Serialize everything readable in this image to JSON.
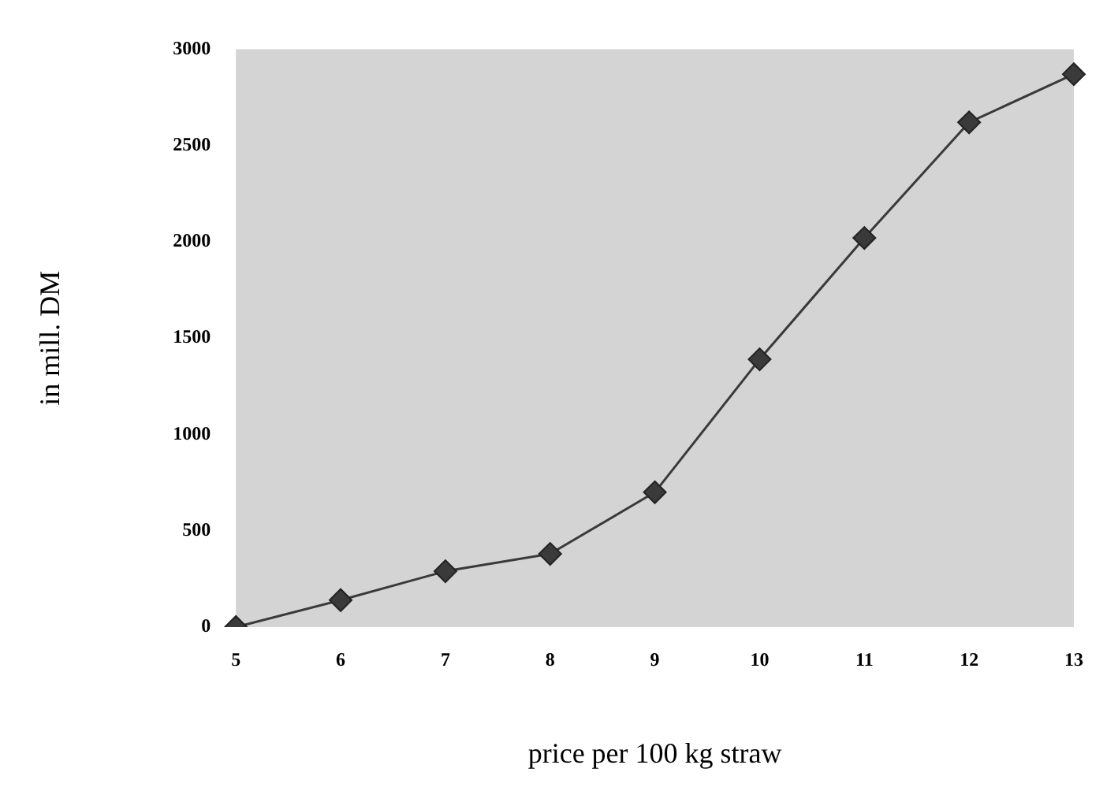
{
  "chart_data": {
    "type": "line",
    "xlabel": "price per 100 kg straw",
    "ylabel": "in mill. DM",
    "categories": [
      "5",
      "6",
      "7",
      "8",
      "9",
      "10",
      "11",
      "12",
      "13"
    ],
    "series": [
      {
        "color": "#3a3a3a",
        "values": [
          0,
          140,
          290,
          380,
          700,
          1390,
          2020,
          2620,
          2870
        ]
      }
    ],
    "ylim": [
      0,
      3000
    ],
    "yticks": [
      0,
      500,
      1000,
      1500,
      2000,
      2500,
      3000
    ],
    "grid": false,
    "legend": false,
    "marker": "diamond",
    "line_style": "solid"
  }
}
